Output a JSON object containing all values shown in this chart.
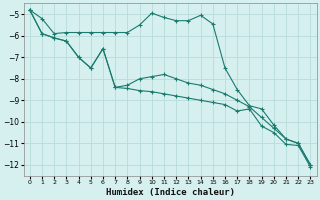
{
  "xlabel": "Humidex (Indice chaleur)",
  "background_color": "#d6f0ef",
  "grid_color": "#b8dcda",
  "line_color": "#1a7a6e",
  "xlim": [
    -0.5,
    23.5
  ],
  "ylim": [
    -12.5,
    -4.5
  ],
  "yticks": [
    -5,
    -6,
    -7,
    -8,
    -9,
    -10,
    -11,
    -12
  ],
  "xticks": [
    0,
    1,
    2,
    3,
    4,
    5,
    6,
    7,
    8,
    9,
    10,
    11,
    12,
    13,
    14,
    15,
    16,
    17,
    18,
    19,
    20,
    21,
    22,
    23
  ],
  "series1_x": [
    0,
    1,
    2,
    3,
    4,
    5,
    6,
    7,
    8,
    9,
    10,
    11,
    12,
    13,
    14,
    15,
    16,
    17,
    18,
    19,
    20,
    21,
    22,
    23
  ],
  "series1_y": [
    -4.8,
    -5.2,
    -5.9,
    -5.85,
    -5.85,
    -5.85,
    -5.85,
    -5.85,
    -5.85,
    -5.5,
    -4.95,
    -5.15,
    -5.3,
    -5.3,
    -5.05,
    -5.45,
    -7.5,
    -8.5,
    -9.25,
    -9.4,
    -10.15,
    -10.8,
    -11.0,
    -12.0
  ],
  "series2_x": [
    0,
    1,
    2,
    3,
    4,
    5,
    6,
    7,
    8,
    9,
    10,
    11,
    12,
    13,
    14,
    15,
    16,
    17,
    18,
    19,
    20,
    21,
    22,
    23
  ],
  "series2_y": [
    -4.8,
    -5.9,
    -6.1,
    -6.25,
    -7.0,
    -7.5,
    -6.6,
    -8.4,
    -8.3,
    -8.0,
    -7.9,
    -7.8,
    -8.0,
    -8.2,
    -8.3,
    -8.5,
    -8.7,
    -9.0,
    -9.3,
    -9.8,
    -10.3,
    -10.8,
    -11.0,
    -12.0
  ],
  "series3_x": [
    0,
    1,
    2,
    3,
    4,
    5,
    6,
    7,
    8,
    9,
    10,
    11,
    12,
    13,
    14,
    15,
    16,
    17,
    18,
    19,
    20,
    21,
    22,
    23
  ],
  "series3_y": [
    -4.8,
    -5.9,
    -6.1,
    -6.25,
    -7.0,
    -7.5,
    -6.6,
    -8.4,
    -8.45,
    -8.55,
    -8.6,
    -8.7,
    -8.8,
    -8.9,
    -9.0,
    -9.1,
    -9.2,
    -9.5,
    -9.4,
    -10.2,
    -10.5,
    -11.05,
    -11.1,
    -12.1
  ]
}
